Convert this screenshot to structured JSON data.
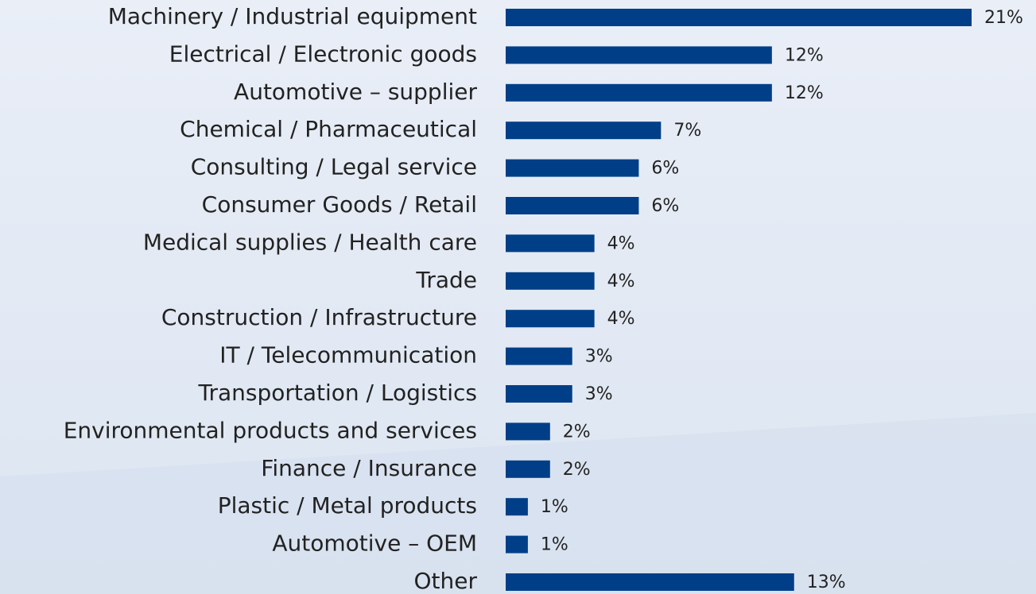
{
  "chart_data": {
    "type": "barh",
    "categories": [
      "Machinery / Industrial equipment",
      "Electrical / Electronic goods",
      "Automotive – supplier",
      "Chemical / Pharmaceutical",
      "Consulting / Legal service",
      "Consumer Goods / Retail",
      "Medical supplies / Health care",
      "Trade",
      "Construction / Infrastructure",
      "IT / Telecommunication",
      "Transportation / Logistics",
      "Environmental products and services",
      "Finance / Insurance",
      "Plastic / Metal products",
      "Automotive – OEM",
      "Other"
    ],
    "values": [
      21,
      12,
      12,
      7,
      6,
      6,
      4,
      4,
      4,
      3,
      3,
      2,
      2,
      1,
      1,
      13
    ],
    "value_labels": [
      "21%",
      "12%",
      "12%",
      "7%",
      "6%",
      "6%",
      "4%",
      "4%",
      "4%",
      "3%",
      "3%",
      "2%",
      "2%",
      "1%",
      "1%",
      "13%"
    ],
    "color": "#003f87"
  }
}
